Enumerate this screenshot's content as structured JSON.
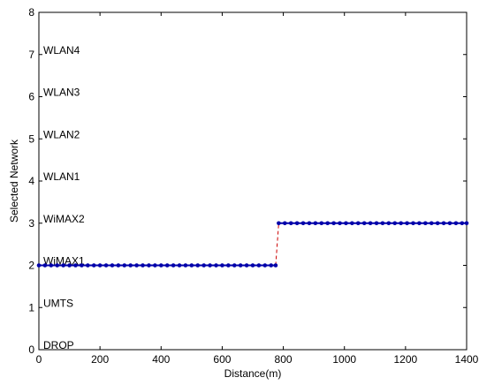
{
  "chart_data": {
    "type": "line",
    "xlabel": "Distance(m)",
    "ylabel": "Selected Network",
    "xlim": [
      0,
      1400
    ],
    "ylim": [
      0,
      8
    ],
    "xticks": [
      0,
      200,
      400,
      600,
      800,
      1000,
      1200,
      1400
    ],
    "yticks": [
      0,
      1,
      2,
      3,
      4,
      5,
      6,
      7,
      8
    ],
    "grid": false,
    "network_labels": [
      {
        "y": 0,
        "text": "DROP"
      },
      {
        "y": 1,
        "text": "UMTS"
      },
      {
        "y": 2,
        "text": "WiMAX1"
      },
      {
        "y": 3,
        "text": "WiMAX2"
      },
      {
        "y": 4,
        "text": "WLAN1"
      },
      {
        "y": 5,
        "text": "WLAN2"
      },
      {
        "y": 6,
        "text": "WLAN3"
      },
      {
        "y": 7,
        "text": "WLAN4"
      }
    ],
    "series": [
      {
        "style": "dots",
        "color": "#0000aa",
        "segments": [
          {
            "x_start": 0,
            "x_end": 775,
            "y": 2
          },
          {
            "x_start": 785,
            "x_end": 1400,
            "y": 3
          }
        ]
      },
      {
        "style": "dashed",
        "color": "#cc0000",
        "x": [
          775,
          785
        ],
        "y": [
          2,
          3
        ]
      }
    ]
  }
}
